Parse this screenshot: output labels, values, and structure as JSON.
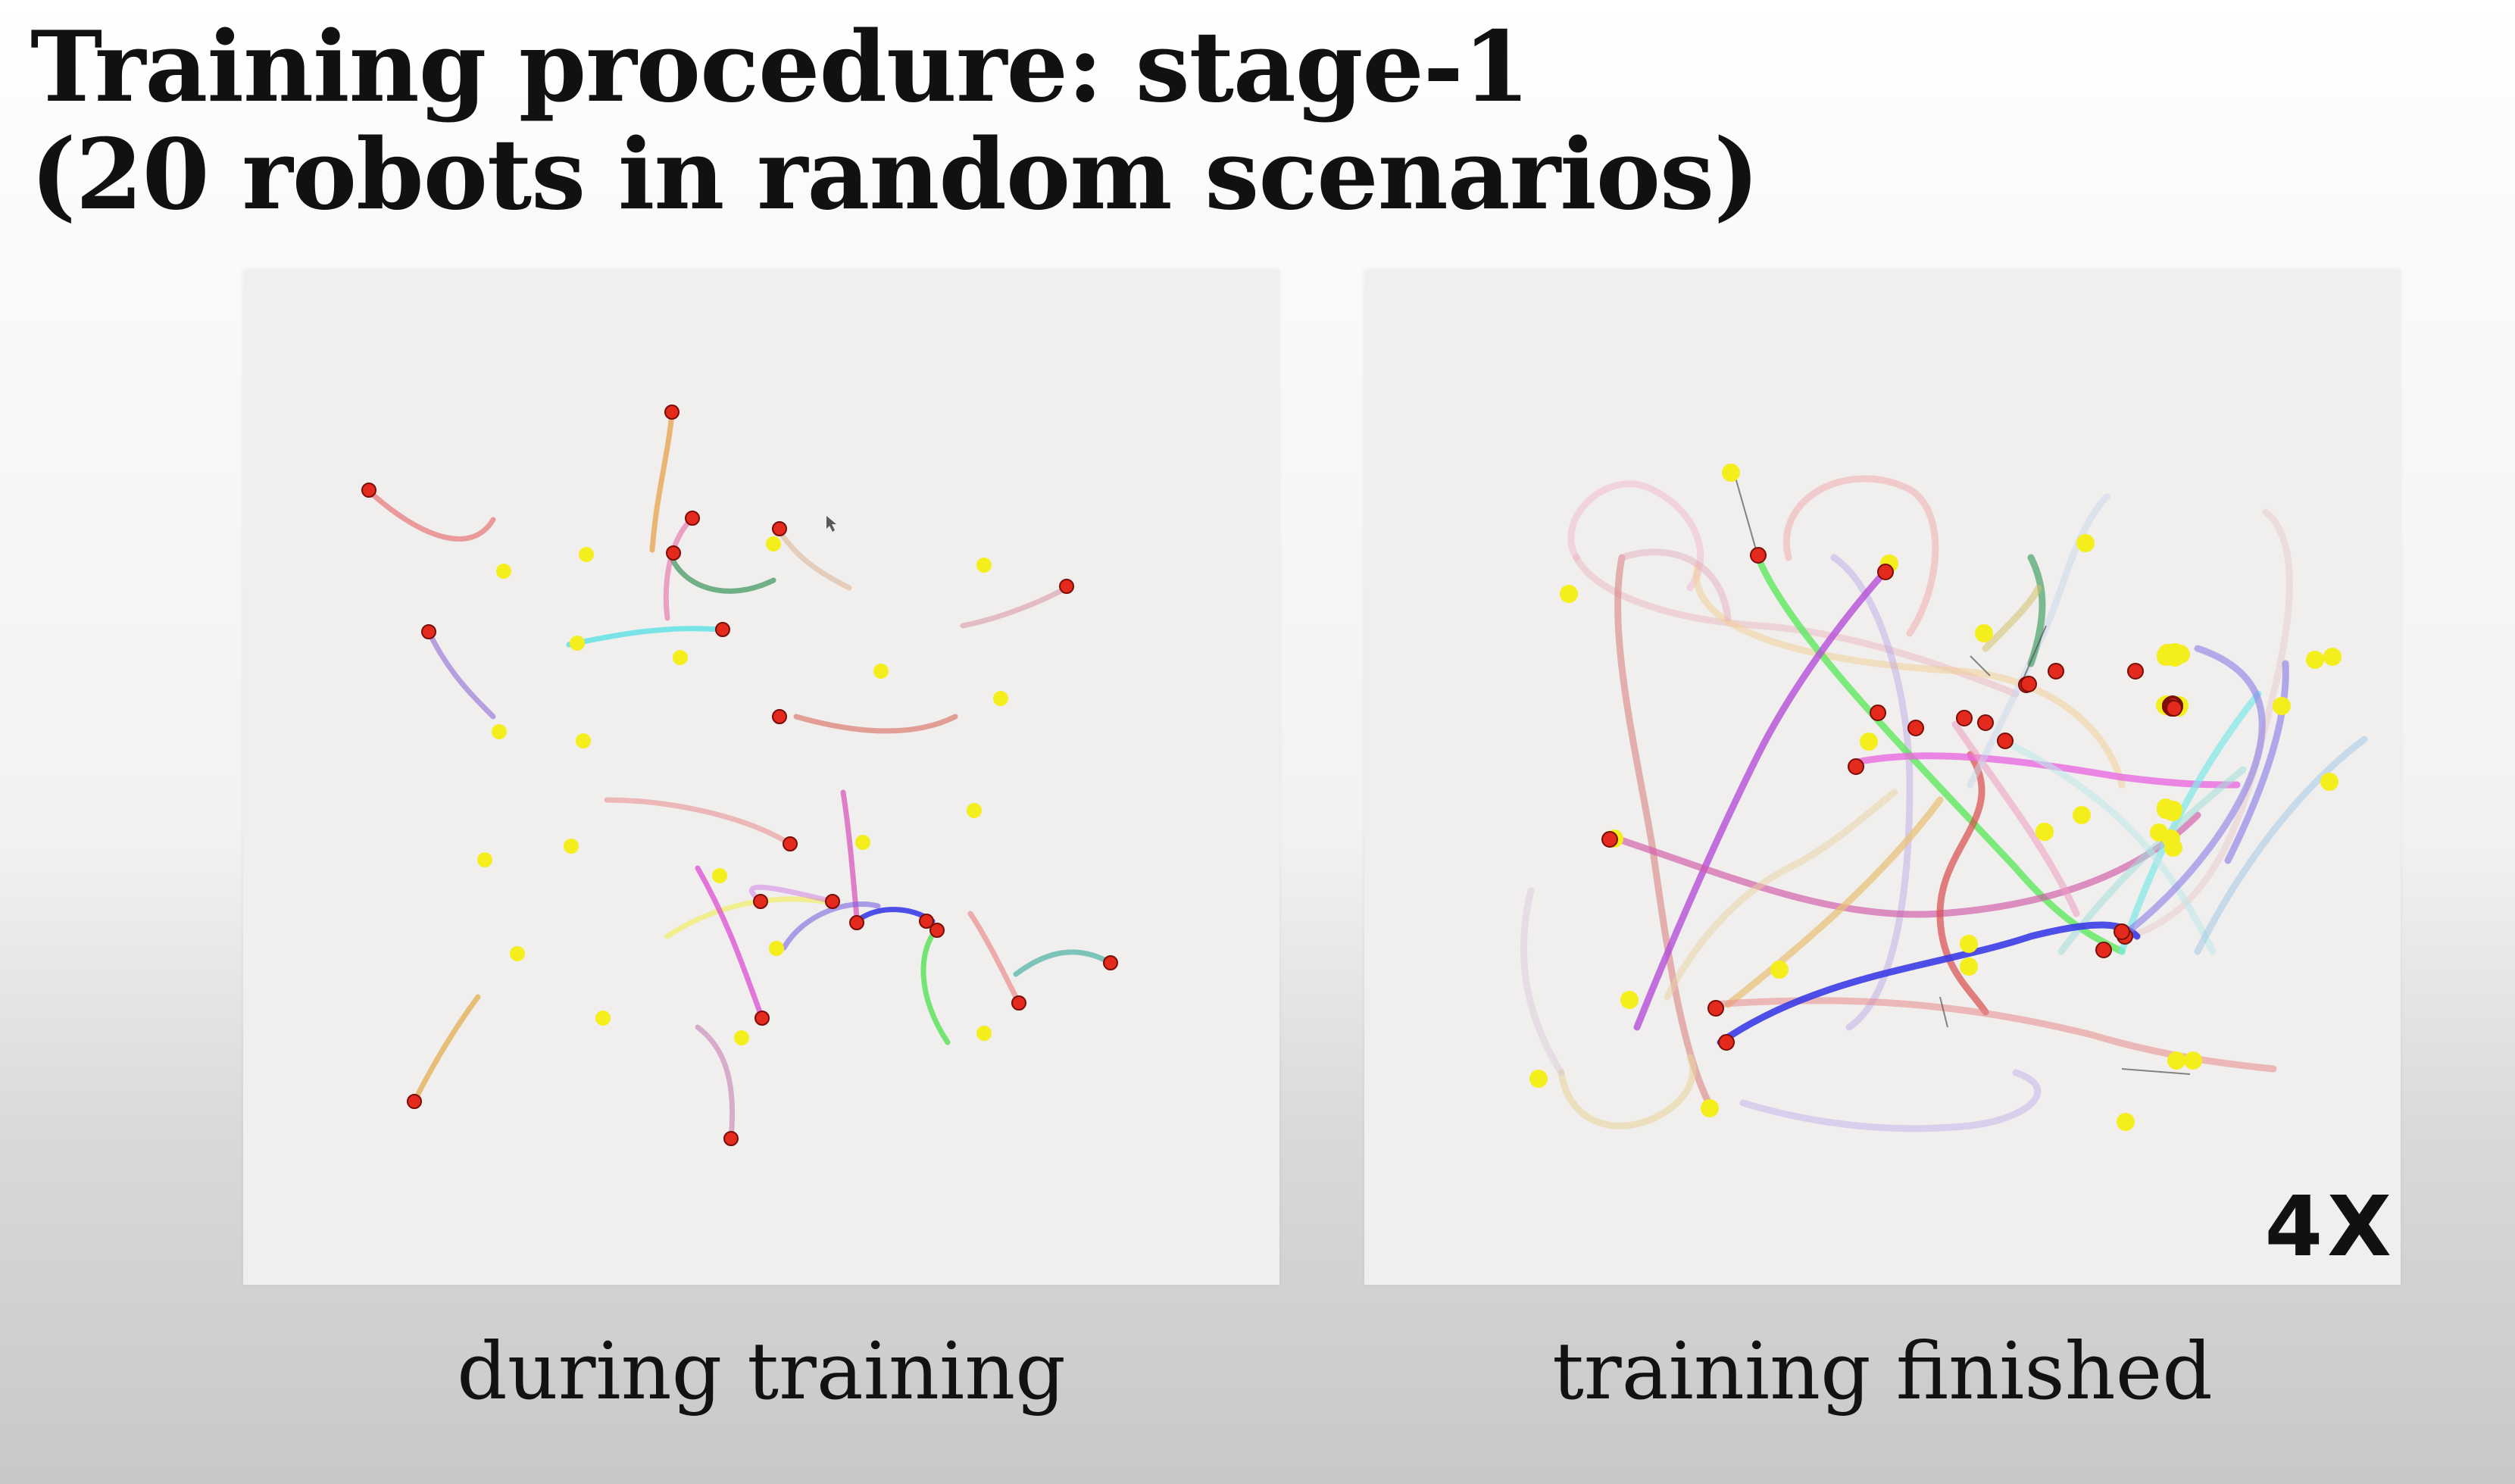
{
  "slide": {
    "title_line1": "Training procedure: stage-1",
    "title_line2": "(20 robots in random scenarios)"
  },
  "panels": [
    {
      "id": "during",
      "caption": "during training",
      "badge": ""
    },
    {
      "id": "finished",
      "caption": "training finished",
      "badge": "4X"
    }
  ],
  "colors": {
    "robot": "#e32a1c",
    "goal": "#f4ee1c",
    "panel_bg": "#f0efee"
  },
  "icons": {
    "robot": "robot-marker-icon",
    "goal": "goal-marker-icon",
    "cursor": "mouse-cursor-icon"
  }
}
